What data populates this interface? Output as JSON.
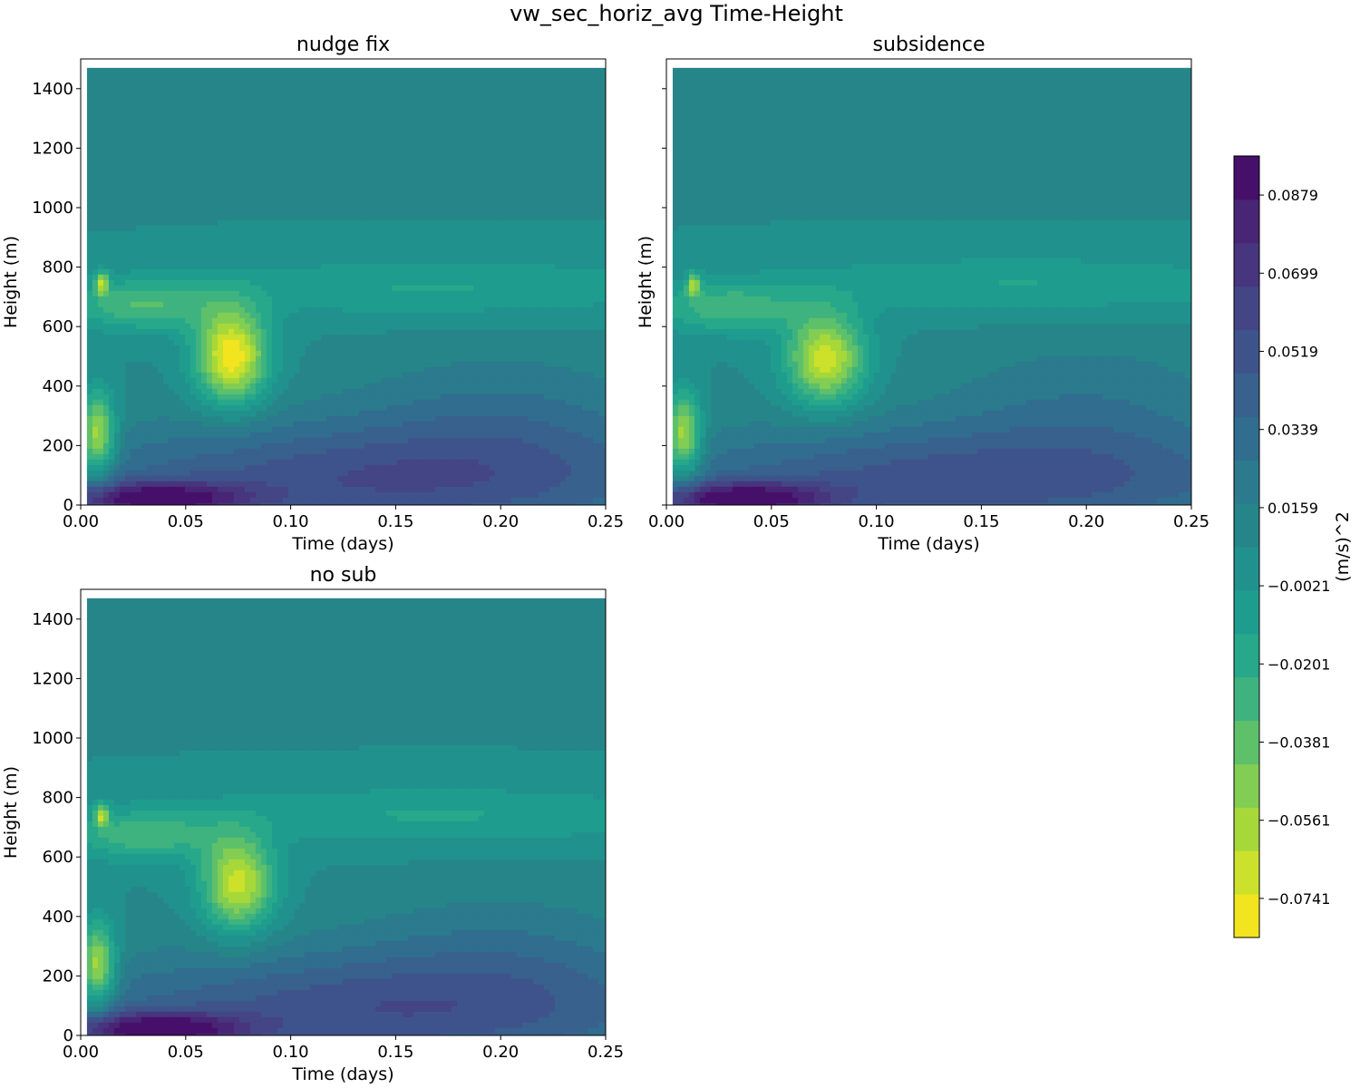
{
  "suptitle": "vw_sec_horiz_avg Time-Height",
  "chart_data": {
    "type": "heatmap",
    "subtype": "filled-contour",
    "title": "vw_sec_horiz_avg Time-Height",
    "xlabel": "Time (days)",
    "ylabel": "Height (m)",
    "xlim": [
      0,
      0.25
    ],
    "ylim": [
      0,
      1500
    ],
    "xticks": [
      "0.00",
      "0.05",
      "0.10",
      "0.15",
      "0.20",
      "0.25"
    ],
    "xtick_values": [
      0,
      0.05,
      0.1,
      0.15,
      0.2,
      0.25
    ],
    "yticks": [
      "0",
      "200",
      "400",
      "600",
      "800",
      "1000",
      "1200",
      "1400"
    ],
    "ytick_values": [
      0,
      200,
      400,
      600,
      800,
      1000,
      1200,
      1400
    ],
    "data_top_height": 1470,
    "colormap": "viridis_r",
    "background_value": 0.007,
    "colorbar": {
      "label": "(m/s)^2",
      "min": -0.0831,
      "max": 0.0969,
      "n_levels": 19,
      "tick_labels": [
        "0.0879",
        "0.0699",
        "0.0519",
        "0.0339",
        "0.0159",
        "−0.0021",
        "−0.0201",
        "−0.0381",
        "−0.0561",
        "−0.0741"
      ],
      "tick_values": [
        0.0879,
        0.0699,
        0.0519,
        0.0339,
        0.0159,
        -0.0021,
        -0.0201,
        -0.0381,
        -0.0561,
        -0.0741
      ],
      "colors": [
        "#f2e41f",
        "#cce12b",
        "#a7d83a",
        "#82cd53",
        "#5fc06a",
        "#3eb37f",
        "#27a88a",
        "#1e9d8f",
        "#21918d",
        "#268589",
        "#2b7a8d",
        "#316d8e",
        "#38618d",
        "#3f538b",
        "#444585",
        "#47357e",
        "#482575",
        "#46106a"
      ]
    },
    "panels": [
      {
        "title": "nudge fix",
        "features": [
          {
            "t": 0.008,
            "z": 230,
            "value": -0.068,
            "st": 0.006,
            "sz": 100
          },
          {
            "t": 0.01,
            "z": 745,
            "value": -0.052,
            "st": 0.0022,
            "sz": 28
          },
          {
            "t": 0.072,
            "z": 500,
            "value": -0.082,
            "st": 0.012,
            "sz": 110
          },
          {
            "t": 0.03,
            "z": 670,
            "value": -0.03,
            "st": 0.025,
            "sz": 60
          },
          {
            "t": 0.17,
            "z": 730,
            "value": -0.014,
            "st": 0.09,
            "sz": 70
          },
          {
            "t": 0.035,
            "z": 20,
            "value": 0.08,
            "st": 0.03,
            "sz": 40
          },
          {
            "t": 0.14,
            "z": 80,
            "value": 0.055,
            "st": 0.11,
            "sz": 140
          },
          {
            "t": 0.2,
            "z": 300,
            "value": 0.025,
            "st": 0.05,
            "sz": 160
          }
        ]
      },
      {
        "title": "subsidence",
        "features": [
          {
            "t": 0.008,
            "z": 230,
            "value": -0.066,
            "st": 0.006,
            "sz": 100
          },
          {
            "t": 0.013,
            "z": 740,
            "value": -0.05,
            "st": 0.0022,
            "sz": 28
          },
          {
            "t": 0.076,
            "z": 490,
            "value": -0.07,
            "st": 0.013,
            "sz": 105
          },
          {
            "t": 0.03,
            "z": 660,
            "value": -0.028,
            "st": 0.025,
            "sz": 60
          },
          {
            "t": 0.17,
            "z": 740,
            "value": -0.014,
            "st": 0.09,
            "sz": 70
          },
          {
            "t": 0.035,
            "z": 20,
            "value": 0.08,
            "st": 0.03,
            "sz": 40
          },
          {
            "t": 0.14,
            "z": 80,
            "value": 0.052,
            "st": 0.11,
            "sz": 130
          },
          {
            "t": 0.2,
            "z": 330,
            "value": 0.024,
            "st": 0.05,
            "sz": 170
          }
        ]
      },
      {
        "title": "no sub",
        "features": [
          {
            "t": 0.008,
            "z": 230,
            "value": -0.067,
            "st": 0.006,
            "sz": 100
          },
          {
            "t": 0.01,
            "z": 740,
            "value": -0.05,
            "st": 0.0022,
            "sz": 28
          },
          {
            "t": 0.075,
            "z": 510,
            "value": -0.068,
            "st": 0.012,
            "sz": 110
          },
          {
            "t": 0.03,
            "z": 670,
            "value": -0.028,
            "st": 0.025,
            "sz": 60
          },
          {
            "t": 0.17,
            "z": 740,
            "value": -0.014,
            "st": 0.09,
            "sz": 70
          },
          {
            "t": 0.035,
            "z": 20,
            "value": 0.082,
            "st": 0.03,
            "sz": 40
          },
          {
            "t": 0.14,
            "z": 80,
            "value": 0.054,
            "st": 0.11,
            "sz": 140
          },
          {
            "t": 0.2,
            "z": 290,
            "value": 0.022,
            "st": 0.05,
            "sz": 150
          }
        ]
      }
    ]
  }
}
